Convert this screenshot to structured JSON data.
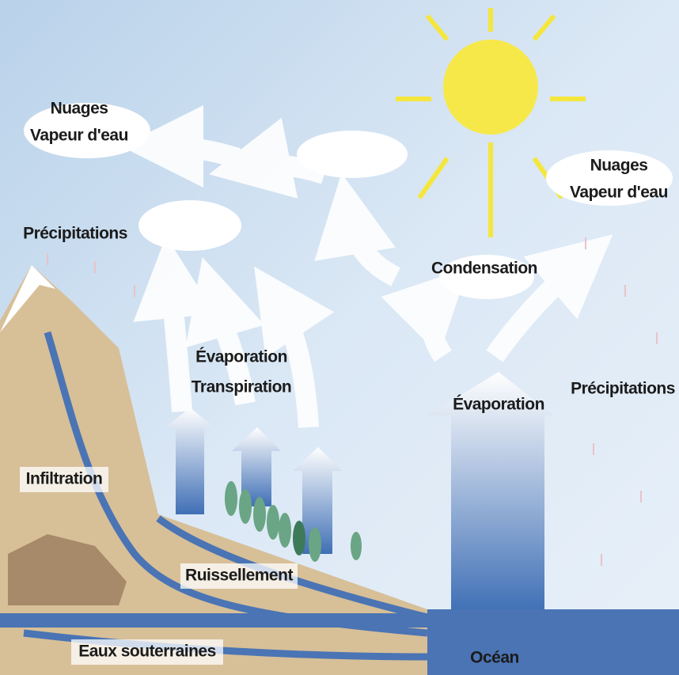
{
  "labels": {
    "clouds_left": [
      "Nuages",
      "Vapeur d'eau"
    ],
    "precipitation_left": "Précipitations",
    "evapotranspiration": [
      "Évaporation",
      "Transpiration"
    ],
    "condensation": "Condensation",
    "clouds_right": [
      "Nuages",
      "Vapeur d'eau"
    ],
    "precipitation_right": "Précipitations",
    "evaporation": "Évaporation",
    "infiltration": "Infiltration",
    "runoff": "Ruissellement",
    "groundwater": "Eaux souterraines",
    "ocean": "Océan"
  }
}
